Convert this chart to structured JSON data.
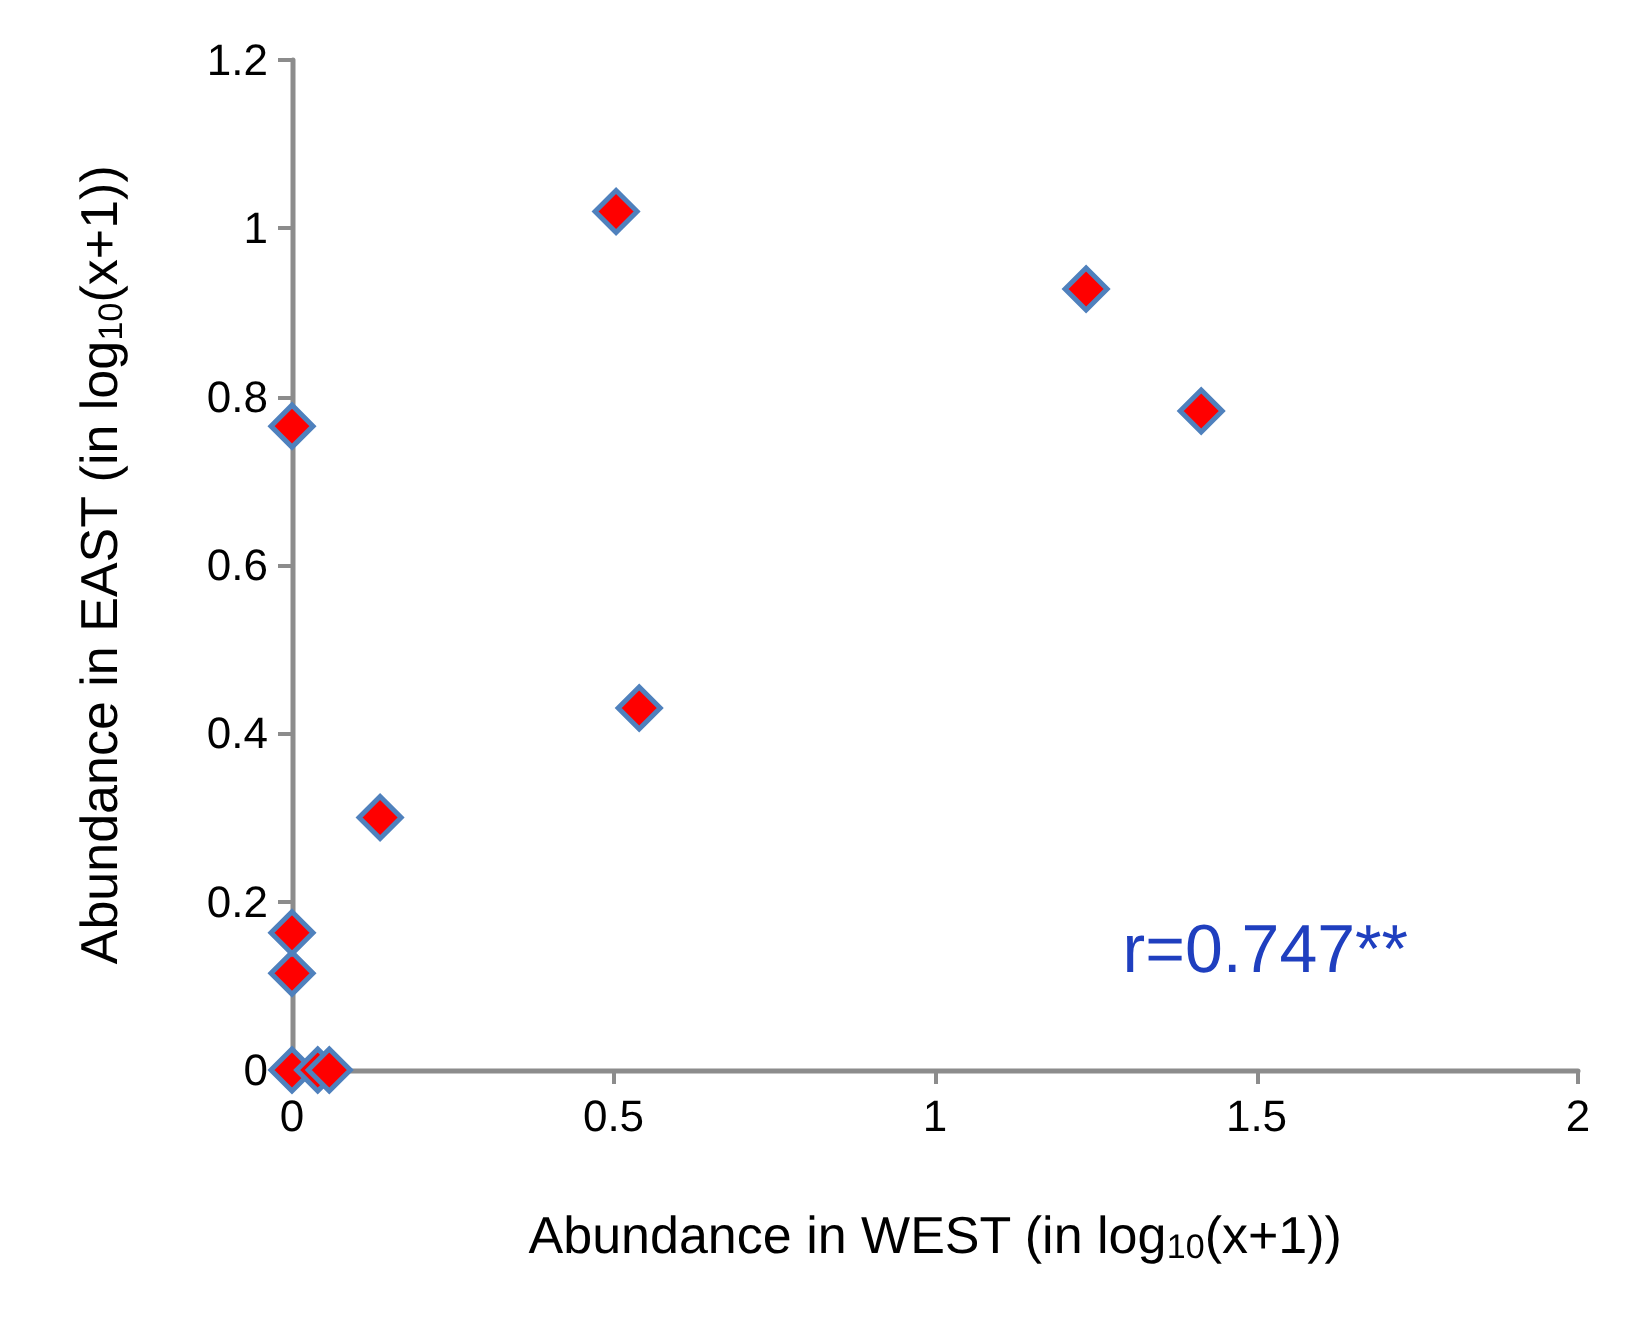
{
  "chart_data": {
    "type": "scatter",
    "xlabel": "Abundance in WEST (in log$_{10}$(x+1))",
    "ylabel": "Abundance in EAST (in log$_{10}$(x+1))",
    "x": [
      0,
      0,
      0,
      0,
      0.137,
      0.04,
      0.058,
      0.504,
      0.54,
      1.235,
      1.414
    ],
    "series": [
      {
        "color": "#ff0000",
        "values": [
          0,
          0.115,
          0.163,
          0.765,
          0.3,
          0,
          0,
          1.02,
          0.43,
          0.928,
          0.783
        ]
      }
    ],
    "marker": "diamond",
    "xlim": [
      0,
      2
    ],
    "xticks": [
      0,
      0.5,
      1,
      1.5,
      2
    ],
    "ylim": [
      0,
      1.2
    ],
    "yticks": [
      0,
      0.2,
      0.4,
      0.6,
      0.8,
      1,
      1.2
    ],
    "grid": false,
    "annotations": [
      "r=0.747**"
    ]
  }
}
